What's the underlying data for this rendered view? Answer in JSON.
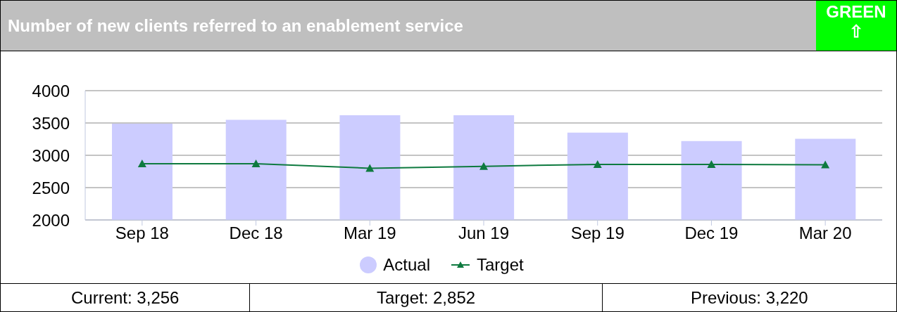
{
  "chart_data": {
    "type": "bar",
    "title": "Number of new clients referred to an enablement service",
    "categories": [
      "Sep 18",
      "Dec 18",
      "Mar 19",
      "Jun 19",
      "Sep 19",
      "Dec 19",
      "Mar 20"
    ],
    "series": [
      {
        "name": "Actual",
        "color": "#ccccff",
        "values": [
          3490,
          3550,
          3620,
          3620,
          3350,
          3220,
          3256
        ]
      },
      {
        "name": "Target",
        "type": "line",
        "color": "#0e7a3f",
        "marker": "triangle",
        "values": [
          2870,
          2870,
          2800,
          2830,
          2860,
          2860,
          2852
        ]
      }
    ],
    "ylim": [
      2000,
      4000
    ],
    "yticks": [
      2000,
      2500,
      3000,
      3500,
      4000
    ],
    "grid": "y",
    "legend": "bottom",
    "annotations": [
      "GREEN",
      "⇧",
      "Current: 3,256",
      "Target: 2,852",
      "Previous: 3,220"
    ]
  }
}
